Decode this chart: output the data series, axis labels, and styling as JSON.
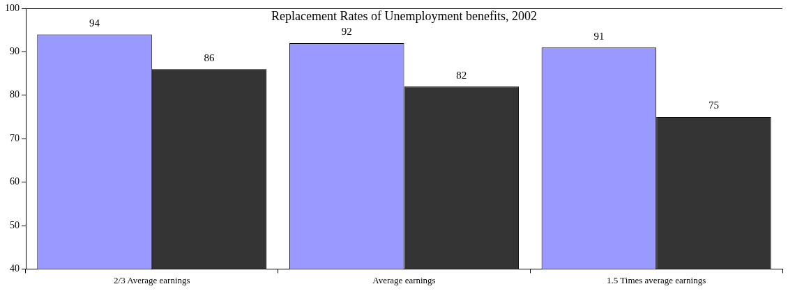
{
  "chart_data": {
    "type": "bar",
    "title": "Replacement Rates of Unemployment benefits, 2002",
    "categories": [
      "2/3 Average earnings",
      "Average earnings",
      "1.5 Times average earnings"
    ],
    "series": [
      {
        "color": "#9999ff",
        "values": [
          94,
          92,
          91
        ]
      },
      {
        "color": "#333333",
        "values": [
          86,
          82,
          75
        ]
      }
    ],
    "ylim": [
      40,
      100
    ],
    "yticks": [
      40,
      50,
      60,
      70,
      80,
      90,
      100
    ],
    "grid": false,
    "legend": false,
    "data_labels": true
  }
}
